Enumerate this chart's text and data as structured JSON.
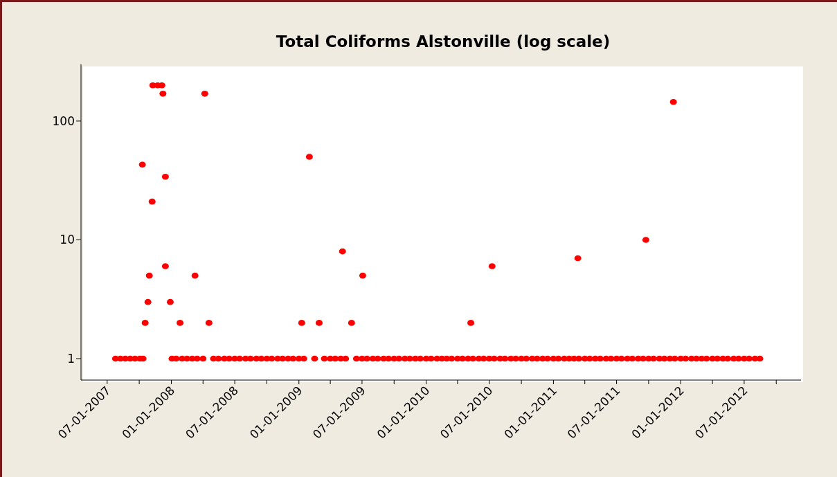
{
  "chart_data": {
    "type": "scatter",
    "title": "Total Coliforms Alstonville (log scale)",
    "x": [
      "2007-07-25",
      "2007-08-08",
      "2007-08-22",
      "2007-09-05",
      "2007-09-19",
      "2007-10-03",
      "2007-10-12",
      "2007-10-10",
      "2007-10-18",
      "2007-10-26",
      "2007-10-30",
      "2007-11-07",
      "2007-11-09",
      "2007-11-23",
      "2007-12-05",
      "2007-12-08",
      "2007-12-15",
      "2007-12-15",
      "2007-12-29",
      "2008-01-03",
      "2008-01-15",
      "2008-01-26",
      "2008-02-01",
      "2008-02-15",
      "2008-03-01",
      "2008-03-09",
      "2008-03-15",
      "2008-04-01",
      "2008-04-06",
      "2008-04-18",
      "2008-05-01",
      "2008-05-15",
      "2008-06-01",
      "2008-06-15",
      "2008-07-01",
      "2008-07-15",
      "2008-08-01",
      "2008-08-15",
      "2008-09-01",
      "2008-09-15",
      "2008-10-01",
      "2008-10-15",
      "2008-11-01",
      "2008-11-15",
      "2008-12-01",
      "2008-12-15",
      "2009-01-01",
      "2009-01-09",
      "2009-01-15",
      "2009-01-31",
      "2009-02-15",
      "2009-02-28",
      "2009-03-15",
      "2009-04-01",
      "2009-04-15",
      "2009-05-01",
      "2009-05-06",
      "2009-05-15",
      "2009-06-01",
      "2009-06-15",
      "2009-07-01",
      "2009-07-03",
      "2009-07-15",
      "2009-08-01",
      "2009-08-15",
      "2009-09-01",
      "2009-09-15",
      "2009-10-01",
      "2009-10-15",
      "2009-11-01",
      "2009-11-15",
      "2009-12-01",
      "2009-12-15",
      "2010-01-01",
      "2010-01-15",
      "2010-02-01",
      "2010-02-15",
      "2010-03-01",
      "2010-03-15",
      "2010-04-01",
      "2010-04-15",
      "2010-05-01",
      "2010-05-09",
      "2010-05-15",
      "2010-06-01",
      "2010-06-15",
      "2010-07-01",
      "2010-07-09",
      "2010-07-15",
      "2010-08-01",
      "2010-08-15",
      "2010-09-01",
      "2010-09-15",
      "2010-10-01",
      "2010-10-15",
      "2010-11-01",
      "2010-11-15",
      "2010-12-01",
      "2010-12-15",
      "2011-01-01",
      "2011-01-15",
      "2011-02-01",
      "2011-02-15",
      "2011-03-01",
      "2011-03-12",
      "2011-03-15",
      "2011-04-01",
      "2011-04-15",
      "2011-05-01",
      "2011-05-15",
      "2011-06-01",
      "2011-06-15",
      "2011-07-01",
      "2011-07-15",
      "2011-08-01",
      "2011-08-15",
      "2011-09-01",
      "2011-09-15",
      "2011-09-23",
      "2011-10-01",
      "2011-10-15",
      "2011-11-01",
      "2011-11-15",
      "2011-12-01",
      "2011-12-11",
      "2011-12-15",
      "2012-01-01",
      "2012-01-15",
      "2012-02-01",
      "2012-02-15",
      "2012-03-01",
      "2012-03-15",
      "2012-04-01",
      "2012-04-15",
      "2012-05-01",
      "2012-05-15",
      "2012-06-01",
      "2012-06-15",
      "2012-07-01",
      "2012-07-15",
      "2012-08-01",
      "2012-08-15"
    ],
    "series": [
      {
        "color": "#ff0000",
        "values": [
          1,
          1,
          1,
          1,
          1,
          1,
          1,
          43,
          2,
          3,
          5,
          21,
          200,
          200,
          200,
          170,
          34,
          6,
          3,
          1,
          1,
          2,
          1,
          1,
          1,
          5,
          1,
          1,
          170,
          2,
          1,
          1,
          1,
          1,
          1,
          1,
          1,
          1,
          1,
          1,
          1,
          1,
          1,
          1,
          1,
          1,
          1,
          2,
          1,
          50,
          1,
          2,
          1,
          1,
          1,
          1,
          8,
          1,
          2,
          1,
          1,
          5,
          1,
          1,
          1,
          1,
          1,
          1,
          1,
          1,
          1,
          1,
          1,
          1,
          1,
          1,
          1,
          1,
          1,
          1,
          1,
          1,
          2,
          1,
          1,
          1,
          1,
          6,
          1,
          1,
          1,
          1,
          1,
          1,
          1,
          1,
          1,
          1,
          1,
          1,
          1,
          1,
          1,
          1,
          7,
          1,
          1,
          1,
          1,
          1,
          1,
          1,
          1,
          1,
          1,
          1,
          1,
          1,
          10,
          1,
          1,
          1,
          1,
          1,
          145,
          1,
          1,
          1,
          1,
          1,
          1,
          1,
          1,
          1,
          1,
          1,
          1,
          1,
          1,
          1,
          1,
          1
        ]
      }
    ],
    "log": true,
    "marker": "circle",
    "grid": false,
    "xlim": [
      "2007-04-17",
      "2012-12-11"
    ],
    "xticks": [
      {
        "value": "2007-07-01",
        "label": "07-01-2007"
      },
      {
        "value": "2007-10-01",
        "label": null
      },
      {
        "value": "2008-01-01",
        "label": "01-01-2008"
      },
      {
        "value": "2008-04-01",
        "label": null
      },
      {
        "value": "2008-07-01",
        "label": "07-01-2008"
      },
      {
        "value": "2008-10-01",
        "label": null
      },
      {
        "value": "2009-01-01",
        "label": "01-01-2009"
      },
      {
        "value": "2009-04-01",
        "label": null
      },
      {
        "value": "2009-07-01",
        "label": "07-01-2009"
      },
      {
        "value": "2009-10-01",
        "label": null
      },
      {
        "value": "2010-01-01",
        "label": "01-01-2010"
      },
      {
        "value": "2010-04-01",
        "label": null
      },
      {
        "value": "2010-07-01",
        "label": "07-01-2010"
      },
      {
        "value": "2010-10-01",
        "label": null
      },
      {
        "value": "2011-01-01",
        "label": "01-01-2011"
      },
      {
        "value": "2011-04-01",
        "label": null
      },
      {
        "value": "2011-07-01",
        "label": "07-01-2011"
      },
      {
        "value": "2011-10-01",
        "label": null
      },
      {
        "value": "2012-01-01",
        "label": "01-01-2012"
      },
      {
        "value": "2012-04-01",
        "label": null
      },
      {
        "value": "2012-07-01",
        "label": "07-01-2012"
      },
      {
        "value": "2012-10-01",
        "label": null
      }
    ],
    "ylim": [
      0.66,
      300
    ],
    "yticks": [
      1,
      10,
      100
    ]
  }
}
